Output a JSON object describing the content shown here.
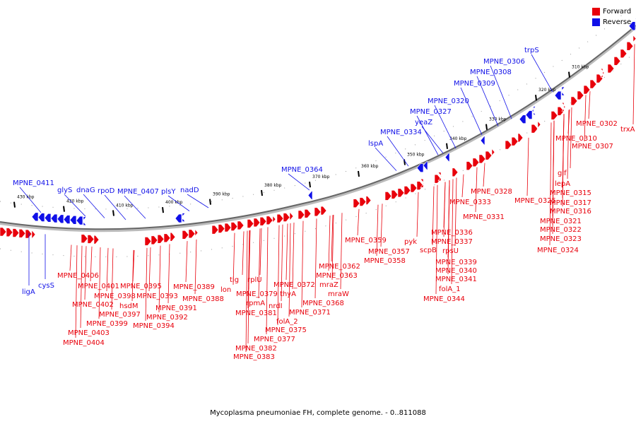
{
  "caption": "Mycoplasma pneumoniae FH, complete genome. - 0..811088",
  "colors": {
    "forward": "#e8000b",
    "reverse": "#1010e8",
    "backbone": "#666666"
  },
  "legend": [
    {
      "label": "Forward",
      "color": "#e8000b"
    },
    {
      "label": "Reverse",
      "color": "#1010e8"
    }
  ],
  "scale_ticks": [
    "310 kbp",
    "320 kbp",
    "330 kbp",
    "340 kbp",
    "350 kbp",
    "360 kbp",
    "370 kbp",
    "380 kbp",
    "390 kbp",
    "400 kbp",
    "410 kbp",
    "420 kbp",
    "430 kbp"
  ],
  "genes_forward": [
    "trxA",
    "MPNE_0302",
    "MPNE_0307",
    "MPNE_0310",
    "glf",
    "lepA",
    "MPNE_0315",
    "MPNE_0316",
    "MPNE_0317",
    "MPNE_0321",
    "MPNE_0322",
    "MPNE_0323",
    "MPNE_0324",
    "MPNE_0325",
    "MPNE_0328",
    "MPNE_0331",
    "MPNE_0333",
    "MPNE_0336",
    "MPNE_0337",
    "rpsU",
    "MPNE_0339",
    "MPNE_0340",
    "MPNE_0341",
    "folA_1",
    "MPNE_0344",
    "scpB",
    "pyk",
    "MPNE_0357",
    "MPNE_0358",
    "MPNE_0359",
    "MPNE_0362",
    "MPNE_0363",
    "mraZ",
    "mraW",
    "MPNE_0368",
    "MPNE_0371",
    "MPNE_0372",
    "thyA",
    "nrdI",
    "folA_2",
    "MPNE_0375",
    "MPNE_0377",
    "MPNE_0379",
    "rplU",
    "rpmA",
    "MPNE_0381",
    "MPNE_0382",
    "MPNE_0383",
    "tig",
    "lon",
    "MPNE_0388",
    "MPNE_0389",
    "MPNE_0391",
    "MPNE_0392",
    "MPNE_0393",
    "MPNE_0394",
    "MPNE_0395",
    "hsdM",
    "MPNE_0397",
    "MPNE_0398",
    "MPNE_0399",
    "MPNE_0401",
    "MPNE_0402",
    "MPNE_0403",
    "MPNE_0404",
    "MPNE_0406"
  ],
  "genes_reverse": [
    "trpS",
    "MPNE_0306",
    "MPNE_0308",
    "MPNE_0309",
    "MPNE_0320",
    "MPNE_0327",
    "yeaZ",
    "MPNE_0334",
    "lspA",
    "MPNE_0364",
    "nadD",
    "plsY",
    "MPNE_0407",
    "rpoD",
    "dnaG",
    "glyS",
    "MPNE_0411",
    "cysS",
    "ligA"
  ]
}
